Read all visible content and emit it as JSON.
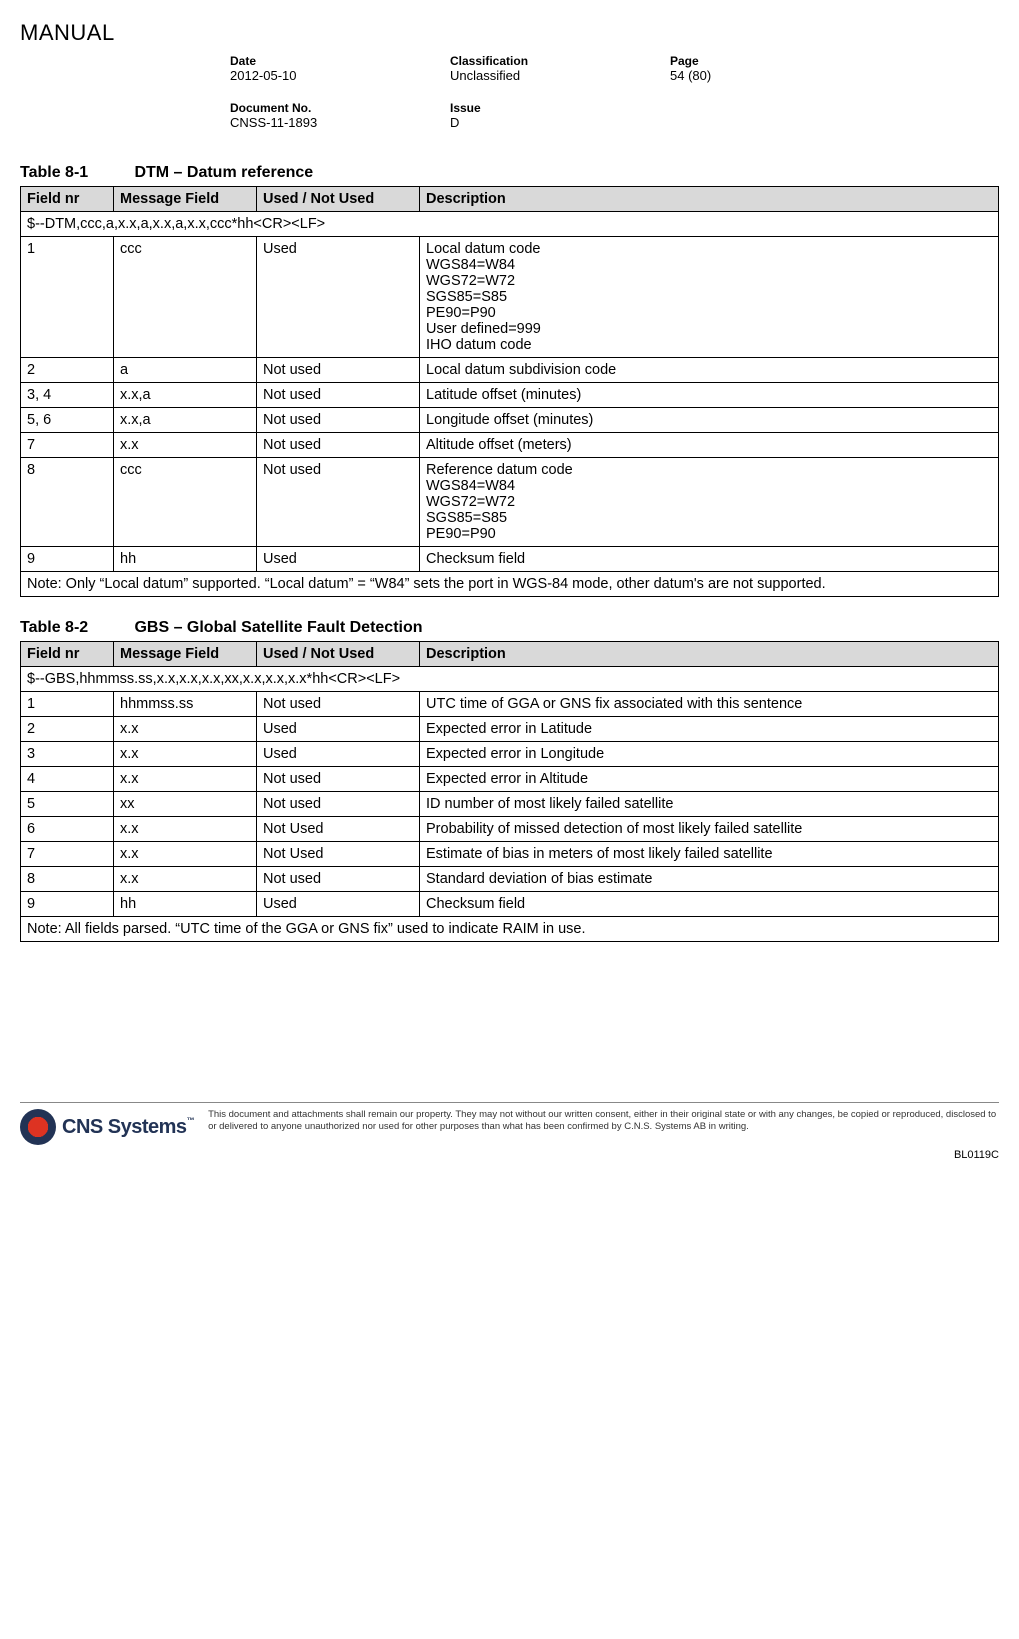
{
  "header": {
    "doc_type": "MANUAL",
    "date_label": "Date",
    "date": "2012-05-10",
    "class_label": "Classification",
    "classification": "Unclassified",
    "page_label": "Page",
    "page": "54 (80)",
    "docno_label": "Document No.",
    "docno": "CNSS-11-1893",
    "issue_label": "Issue",
    "issue": "D"
  },
  "table1": {
    "caption_num": "Table 8-1",
    "caption_text": "DTM – Datum reference",
    "cols": [
      "Field nr",
      "Message Field",
      "Used / Not Used",
      "Description"
    ],
    "format_line": "$--DTM,ccc,a,x.x,a,x.x,a,x.x,ccc*hh<CR><LF>",
    "rows": [
      {
        "fn": "1",
        "mf": "ccc",
        "used": "Used",
        "desc": "Local datum code\nWGS84=W84\nWGS72=W72\nSGS85=S85\nPE90=P90\nUser defined=999\nIHO datum code"
      },
      {
        "fn": "2",
        "mf": "a",
        "used": "Not used",
        "desc": "Local datum subdivision code"
      },
      {
        "fn": "3, 4",
        "mf": "x.x,a",
        "used": "Not used",
        "desc": "Latitude offset (minutes)"
      },
      {
        "fn": "5, 6",
        "mf": "x.x,a",
        "used": "Not used",
        "desc": "Longitude offset (minutes)"
      },
      {
        "fn": "7",
        "mf": "x.x",
        "used": "Not used",
        "desc": "Altitude offset (meters)"
      },
      {
        "fn": "8",
        "mf": "ccc",
        "used": "Not used",
        "desc": "Reference datum code\nWGS84=W84\nWGS72=W72\nSGS85=S85\nPE90=P90"
      },
      {
        "fn": "9",
        "mf": "hh",
        "used": "Used",
        "desc": "Checksum field"
      }
    ],
    "note": "Note: Only “Local datum” supported. “Local datum” = “W84” sets the port in WGS-84 mode, other datum's are not supported."
  },
  "table2": {
    "caption_num": "Table 8-2",
    "caption_text": "GBS – Global Satellite Fault Detection",
    "cols": [
      "Field nr",
      "Message Field",
      "Used / Not Used",
      "Description"
    ],
    "format_line": "$--GBS,hhmmss.ss,x.x,x.x,x.x,xx,x.x,x.x,x.x*hh<CR><LF>",
    "rows": [
      {
        "fn": "1",
        "mf": "hhmmss.ss",
        "used": "Not used",
        "desc": "UTC time of GGA or GNS fix associated with this sentence"
      },
      {
        "fn": "2",
        "mf": "x.x",
        "used": "Used",
        "desc": "Expected error in Latitude"
      },
      {
        "fn": "3",
        "mf": "x.x",
        "used": "Used",
        "desc": "Expected error in Longitude"
      },
      {
        "fn": "4",
        "mf": "x.x",
        "used": "Not used",
        "desc": "Expected error in Altitude"
      },
      {
        "fn": "5",
        "mf": "xx",
        "used": "Not used",
        "desc": "ID number of most likely failed satellite"
      },
      {
        "fn": "6",
        "mf": "x.x",
        "used": "Not Used",
        "desc": "Probability of missed detection of most likely failed satellite"
      },
      {
        "fn": "7",
        "mf": "x.x",
        "used": "Not Used",
        "desc": "Estimate of bias in meters of most likely failed satellite"
      },
      {
        "fn": "8",
        "mf": "x.x",
        "used": "Not used",
        "desc": "Standard deviation of bias estimate"
      },
      {
        "fn": "9",
        "mf": "hh",
        "used": "Used",
        "desc": "Checksum field"
      }
    ],
    "note": "Note: All fields parsed. “UTC time of the GGA or GNS fix” used to indicate RAIM in use."
  },
  "footer": {
    "logo_text": "CNS Systems",
    "legal": "This document and attachments shall remain our property. They may not without our written consent, either in their original state or with any changes, be copied or reproduced, disclosed to or delivered to anyone unauthorized nor used for other purposes than what has been confirmed by C.N.S. Systems AB in writing.",
    "code": "BL0119C"
  }
}
